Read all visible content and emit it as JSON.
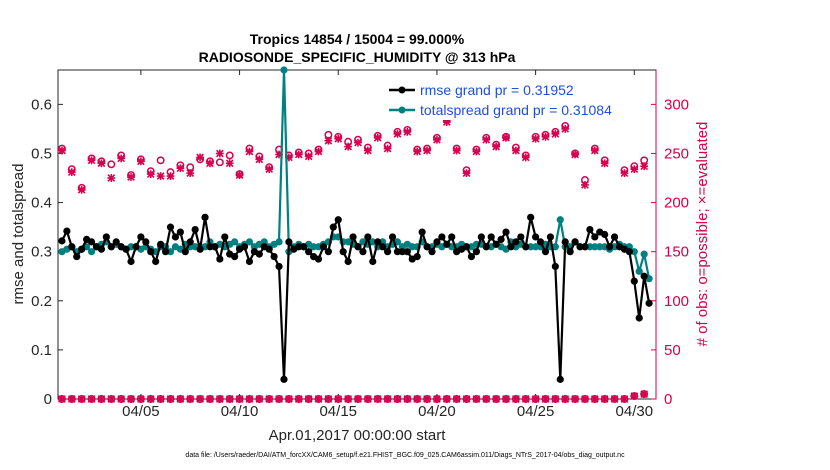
{
  "chart_data": {
    "type": "line",
    "title": "Tropics 14854 / 15004 = 99.000%",
    "subtitle": "RADIOSONDE_SPECIFIC_HUMIDITY @ 313 hPa",
    "xlabel": "Apr.01,2017 00:00:00 start",
    "ylabel": "rmse and totalspread",
    "y2label": "# of obs: o=possible; ×=evaluated",
    "xlim": [
      0.8,
      31.1
    ],
    "ylim": [
      0,
      0.67
    ],
    "y2lim": [
      0,
      335
    ],
    "x_ticks": [
      5,
      10,
      15,
      20,
      25,
      30
    ],
    "x_tick_labels": [
      "04/05",
      "04/10",
      "04/15",
      "04/20",
      "04/25",
      "04/30"
    ],
    "y_ticks": [
      0,
      0.1,
      0.2,
      0.3,
      0.4,
      0.5,
      0.6
    ],
    "y_tick_labels": [
      "0",
      "0.1",
      "0.2",
      "0.3",
      "0.4",
      "0.5",
      "0.6"
    ],
    "y2_ticks": [
      0,
      50,
      100,
      150,
      200,
      250,
      300
    ],
    "y2_tick_labels": [
      "0",
      "50",
      "100",
      "150",
      "200",
      "250",
      "300"
    ],
    "legend": [
      "rmse grand pr = 0.31952",
      "totalspread grand pr = 0.31084"
    ],
    "colors": {
      "rmse": "#000000",
      "spread": "#008080",
      "obs": "#d6004f",
      "legend_text": "#1e4fd8"
    },
    "series": [
      {
        "name": "rmse grand pr = 0.31952",
        "x": [
          1.0,
          1.25,
          1.5,
          1.75,
          2.0,
          2.25,
          2.5,
          2.75,
          3.0,
          3.25,
          3.5,
          3.75,
          4.0,
          4.25,
          4.5,
          4.75,
          5.0,
          5.25,
          5.5,
          5.75,
          6.0,
          6.25,
          6.5,
          6.75,
          7.0,
          7.25,
          7.5,
          7.75,
          8.0,
          8.25,
          8.5,
          8.75,
          9.0,
          9.25,
          9.5,
          9.75,
          10.0,
          10.25,
          10.5,
          10.75,
          11.0,
          11.25,
          11.5,
          11.75,
          12.0,
          12.25,
          12.5,
          12.75,
          13.0,
          13.25,
          13.5,
          13.75,
          14.0,
          14.25,
          14.5,
          14.75,
          15.0,
          15.25,
          15.5,
          15.75,
          16.0,
          16.25,
          16.5,
          16.75,
          17.0,
          17.25,
          17.5,
          17.75,
          18.0,
          18.25,
          18.5,
          18.75,
          19.0,
          19.25,
          19.5,
          19.75,
          20.0,
          20.25,
          20.5,
          20.75,
          21.0,
          21.25,
          21.5,
          21.75,
          22.0,
          22.25,
          22.5,
          22.75,
          23.0,
          23.25,
          23.5,
          23.75,
          24.0,
          24.25,
          24.5,
          24.75,
          25.0,
          25.25,
          25.5,
          25.75,
          26.0,
          26.25,
          26.5,
          26.75,
          27.0,
          27.25,
          27.5,
          27.75,
          28.0,
          28.25,
          28.5,
          28.75,
          29.0,
          29.25,
          29.5,
          29.75,
          30.0,
          30.25,
          30.5,
          30.75
        ],
        "values": [
          0.322,
          0.342,
          0.31,
          0.29,
          0.305,
          0.325,
          0.32,
          0.31,
          0.305,
          0.33,
          0.31,
          0.32,
          0.31,
          0.305,
          0.28,
          0.31,
          0.33,
          0.32,
          0.3,
          0.28,
          0.315,
          0.3,
          0.35,
          0.33,
          0.34,
          0.3,
          0.32,
          0.345,
          0.305,
          0.37,
          0.31,
          0.31,
          0.285,
          0.33,
          0.295,
          0.29,
          0.305,
          0.31,
          0.28,
          0.3,
          0.295,
          0.31,
          0.305,
          0.29,
          0.27,
          0.04,
          0.32,
          0.305,
          0.31,
          0.31,
          0.3,
          0.29,
          0.285,
          0.31,
          0.3,
          0.35,
          0.365,
          0.3,
          0.28,
          0.33,
          0.31,
          0.3,
          0.33,
          0.28,
          0.32,
          0.31,
          0.3,
          0.33,
          0.3,
          0.3,
          0.3,
          0.285,
          0.29,
          0.34,
          0.31,
          0.3,
          0.32,
          0.33,
          0.315,
          0.33,
          0.3,
          0.305,
          0.31,
          0.29,
          0.3,
          0.33,
          0.31,
          0.33,
          0.315,
          0.325,
          0.34,
          0.31,
          0.32,
          0.33,
          0.31,
          0.37,
          0.33,
          0.32,
          0.3,
          0.33,
          0.27,
          0.04,
          0.32,
          0.3,
          0.32,
          0.31,
          0.31,
          0.345,
          0.33,
          0.34,
          0.335,
          0.31,
          0.33,
          0.31,
          0.305,
          0.3,
          0.24,
          0.165,
          0.25,
          0.195
        ]
      },
      {
        "name": "totalspread grand pr = 0.31084",
        "x": [
          1.0,
          1.25,
          1.5,
          1.75,
          2.0,
          2.25,
          2.5,
          2.75,
          3.0,
          3.25,
          3.5,
          3.75,
          4.0,
          4.25,
          4.5,
          4.75,
          5.0,
          5.25,
          5.5,
          5.75,
          6.0,
          6.25,
          6.5,
          6.75,
          7.0,
          7.25,
          7.5,
          7.75,
          8.0,
          8.25,
          8.5,
          8.75,
          9.0,
          9.25,
          9.5,
          9.75,
          10.0,
          10.25,
          10.5,
          10.75,
          11.0,
          11.25,
          11.5,
          11.75,
          12.0,
          12.25,
          12.5,
          12.75,
          13.0,
          13.25,
          13.5,
          13.75,
          14.0,
          14.25,
          14.5,
          14.75,
          15.0,
          15.25,
          15.5,
          15.75,
          16.0,
          16.25,
          16.5,
          16.75,
          17.0,
          17.25,
          17.5,
          17.75,
          18.0,
          18.25,
          18.5,
          18.75,
          19.0,
          19.25,
          19.5,
          19.75,
          20.0,
          20.25,
          20.5,
          20.75,
          21.0,
          21.25,
          21.5,
          21.75,
          22.0,
          22.25,
          22.5,
          22.75,
          23.0,
          23.25,
          23.5,
          23.75,
          24.0,
          24.25,
          24.5,
          24.75,
          25.0,
          25.25,
          25.5,
          25.75,
          26.0,
          26.25,
          26.5,
          26.75,
          27.0,
          27.25,
          27.5,
          27.75,
          28.0,
          28.25,
          28.5,
          28.75,
          29.0,
          29.25,
          29.5,
          29.75,
          30.0,
          30.25,
          30.5,
          30.75
        ],
        "values": [
          0.3,
          0.305,
          0.31,
          0.3,
          0.305,
          0.31,
          0.3,
          0.31,
          0.315,
          0.32,
          0.31,
          0.315,
          0.31,
          0.305,
          0.31,
          0.31,
          0.305,
          0.31,
          0.305,
          0.3,
          0.31,
          0.31,
          0.3,
          0.31,
          0.305,
          0.315,
          0.31,
          0.31,
          0.31,
          0.31,
          0.32,
          0.31,
          0.315,
          0.31,
          0.315,
          0.32,
          0.31,
          0.315,
          0.32,
          0.31,
          0.315,
          0.32,
          0.31,
          0.315,
          0.32,
          0.67,
          0.3,
          0.31,
          0.315,
          0.31,
          0.315,
          0.31,
          0.31,
          0.315,
          0.32,
          0.33,
          0.33,
          0.32,
          0.32,
          0.315,
          0.31,
          0.32,
          0.315,
          0.32,
          0.31,
          0.32,
          0.31,
          0.315,
          0.32,
          0.31,
          0.315,
          0.31,
          0.31,
          0.32,
          0.31,
          0.31,
          0.315,
          0.31,
          0.315,
          0.31,
          0.31,
          0.315,
          0.31,
          0.31,
          0.315,
          0.315,
          0.31,
          0.31,
          0.315,
          0.31,
          0.305,
          0.32,
          0.31,
          0.315,
          0.31,
          0.31,
          0.31,
          0.31,
          0.315,
          0.31,
          0.31,
          0.365,
          0.31,
          0.31,
          0.32,
          0.31,
          0.31,
          0.31,
          0.31,
          0.31,
          0.31,
          0.305,
          0.31,
          0.315,
          0.31,
          0.31,
          0.3,
          0.26,
          0.295,
          0.245
        ]
      }
    ],
    "obs_series": [
      {
        "name": "possible",
        "x": [
          1.0,
          1.5,
          2.0,
          2.5,
          3.0,
          3.5,
          4.0,
          4.5,
          5.0,
          5.5,
          6.0,
          6.5,
          7.0,
          7.5,
          8.0,
          8.5,
          9.0,
          9.5,
          10.0,
          10.5,
          11.0,
          11.5,
          12.0,
          12.5,
          13.0,
          13.5,
          14.0,
          14.5,
          15.0,
          15.5,
          16.0,
          16.5,
          17.0,
          17.5,
          18.0,
          18.5,
          19.0,
          19.5,
          20.0,
          20.5,
          21.0,
          21.5,
          22.0,
          22.5,
          23.0,
          23.5,
          24.0,
          24.5,
          25.0,
          25.5,
          26.0,
          26.5,
          27.0,
          27.5,
          28.0,
          28.5,
          29.0,
          29.5,
          30.0,
          30.5
        ],
        "values": [
          255,
          234,
          215,
          245,
          242,
          239,
          248,
          228,
          244,
          232,
          243,
          231,
          238,
          236,
          244,
          242,
          241,
          248,
          229,
          255,
          247,
          236,
          254,
          248,
          251,
          250,
          254,
          269,
          267,
          262,
          264,
          256,
          268,
          258,
          272,
          274,
          254,
          255,
          266,
          284,
          255,
          233,
          254,
          266,
          259,
          267,
          256,
          248,
          267,
          269,
          272,
          278,
          250,
          223,
          255,
          243,
          290,
          233,
          237,
          243
        ],
        "marker": "circle"
      },
      {
        "name": "evaluated",
        "x": [
          1.0,
          1.5,
          2.0,
          2.5,
          3.0,
          3.5,
          4.0,
          4.5,
          5.0,
          5.5,
          6.0,
          6.5,
          7.0,
          7.5,
          8.0,
          8.5,
          9.0,
          9.5,
          10.0,
          10.5,
          11.0,
          11.5,
          12.0,
          12.5,
          13.0,
          13.5,
          14.0,
          14.5,
          15.0,
          15.5,
          16.0,
          16.5,
          17.0,
          17.5,
          18.0,
          18.5,
          19.0,
          19.5,
          20.0,
          20.5,
          21.0,
          21.5,
          22.0,
          22.5,
          23.0,
          23.5,
          24.0,
          24.5,
          25.0,
          25.5,
          26.0,
          26.5,
          27.0,
          27.5,
          28.0,
          28.5,
          29.0,
          29.5,
          30.0,
          30.5
        ],
        "values": [
          253,
          231,
          213,
          243,
          240,
          225,
          245,
          226,
          242,
          229,
          227,
          227,
          235,
          230,
          246,
          240,
          250,
          240,
          228,
          252,
          244,
          234,
          249,
          246,
          249,
          247,
          252,
          263,
          265,
          257,
          261,
          253,
          266,
          255,
          270,
          272,
          252,
          253,
          264,
          282,
          253,
          230,
          252,
          264,
          257,
          266,
          253,
          246,
          265,
          267,
          270,
          275,
          249,
          218,
          253,
          240,
          288,
          230,
          234,
          237
        ],
        "marker": "x"
      }
    ],
    "obs_zero_x": [
      1,
      1.5,
      2,
      2.5,
      3,
      3.5,
      4,
      4.5,
      5,
      5.5,
      6,
      6.5,
      7,
      7.5,
      8,
      8.5,
      9,
      9.5,
      10,
      10.5,
      11,
      11.5,
      12,
      12.5,
      13,
      13.5,
      14,
      14.5,
      15,
      15.5,
      16,
      16.5,
      17,
      17.5,
      18,
      18.5,
      19,
      19.5,
      20,
      20.5,
      21,
      21.5,
      22,
      22.5,
      23,
      23.5,
      24,
      24.5,
      25,
      25.5,
      26,
      26.5,
      27,
      27.5,
      28,
      28.5,
      29,
      29.5,
      30,
      30.5
    ],
    "obs_zero_values": [
      0,
      0,
      0,
      0,
      0,
      0,
      0,
      0,
      0,
      0,
      0,
      0,
      0,
      0,
      0,
      0,
      0,
      0,
      0,
      0,
      0,
      0,
      0,
      0,
      0,
      0,
      0,
      0,
      0,
      0,
      0,
      0,
      0,
      0,
      0,
      0,
      0,
      0,
      0,
      0,
      0,
      0,
      0,
      0,
      0,
      0,
      0,
      0,
      0,
      0,
      0,
      0,
      0,
      0,
      0,
      0,
      0,
      0,
      3,
      5
    ],
    "footer": "data file: /Users/raeder/DAI/ATM_forcXX/CAM6_setup/f.e21.FHIST_BGC.f09_025.CAM6assim.011/Diags_NTrS_2017-04/obs_diag_output.nc"
  }
}
